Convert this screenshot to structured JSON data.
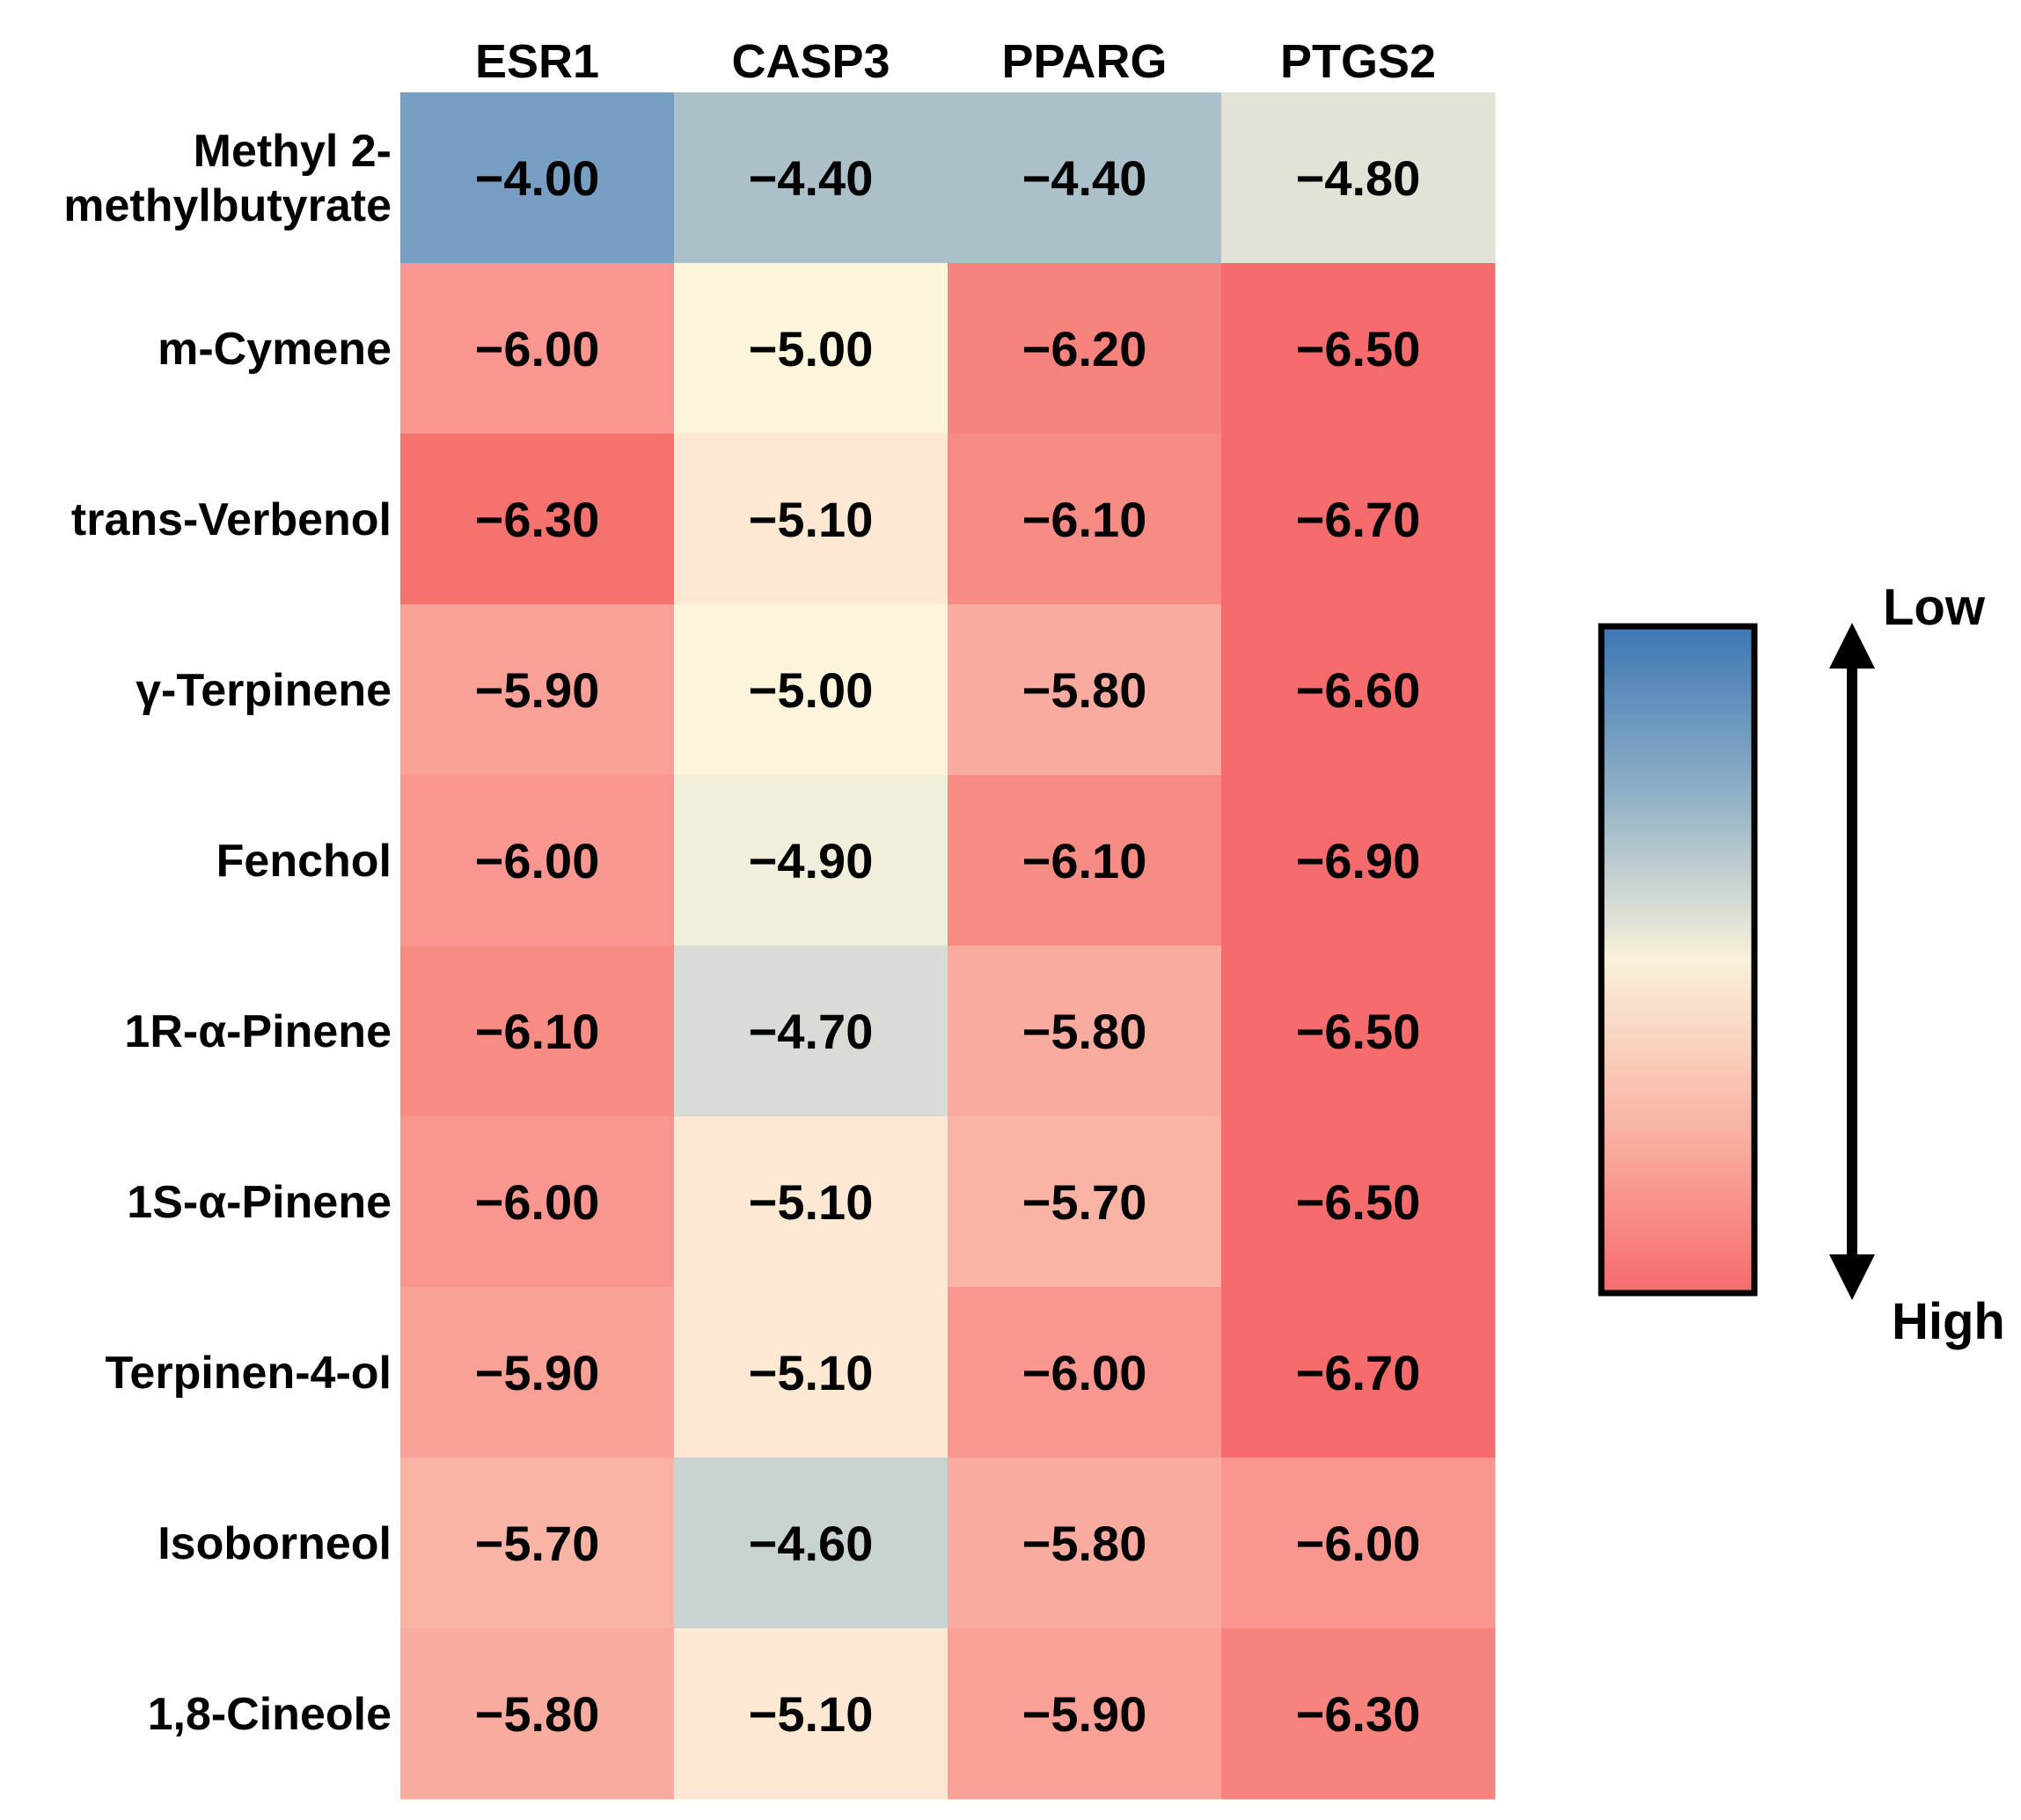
{
  "chart_data": {
    "type": "heatmap",
    "title": "",
    "xlabel": "",
    "ylabel": "",
    "columns": [
      "ESR1",
      "CASP3",
      "PPARG",
      "PTGS2"
    ],
    "rows": [
      [
        "Methyl 2-",
        "methylbutyrate"
      ],
      [
        "m-Cymene"
      ],
      [
        "trans-Verbenol"
      ],
      [
        "γ-Terpinene"
      ],
      [
        "Fenchol"
      ],
      [
        "1R-α-Pinene"
      ],
      [
        "1S-α-Pinene"
      ],
      [
        "Terpinen-4-ol"
      ],
      [
        "Isoborneol"
      ],
      [
        "1,8-Cineole"
      ]
    ],
    "values": [
      [
        -4.0,
        -4.4,
        -4.4,
        -4.8
      ],
      [
        -6.0,
        -5.0,
        -6.2,
        -6.5
      ],
      [
        -6.3,
        -5.1,
        -6.1,
        -6.7
      ],
      [
        -5.9,
        -5.0,
        -5.8,
        -6.6
      ],
      [
        -6.0,
        -4.9,
        -6.1,
        -6.9
      ],
      [
        -6.1,
        -4.7,
        -5.8,
        -6.5
      ],
      [
        -6.0,
        -5.1,
        -5.7,
        -6.5
      ],
      [
        -5.9,
        -5.1,
        -6.0,
        -6.7
      ],
      [
        -5.7,
        -4.6,
        -5.8,
        -6.0
      ],
      [
        -5.8,
        -5.1,
        -5.9,
        -6.3
      ]
    ],
    "cell_colors": [
      [
        "#769fc3",
        "#abc0c9",
        "#abc0c9",
        "#e3e2d6"
      ],
      [
        "#f9968f",
        "#fdf4dc",
        "#f7837f",
        "#f66b6b"
      ],
      [
        "#f6726e",
        "#fde8d4",
        "#f78c85",
        "#f66b6b"
      ],
      [
        "#f9a097",
        "#fdf4dc",
        "#f9ab9f",
        "#f66b6b"
      ],
      [
        "#f9968f",
        "#f2eedc",
        "#f78c85",
        "#f66b6b"
      ],
      [
        "#f78c85",
        "#d9dcd4",
        "#f9ab9f",
        "#f66b6b"
      ],
      [
        "#f9968f",
        "#fde8d4",
        "#f9b4a5",
        "#f66b6b"
      ],
      [
        "#f9a097",
        "#fde8d4",
        "#f9968f",
        "#f66b6b"
      ],
      [
        "#f9b4a5",
        "#c9d3d1",
        "#f9ab9f",
        "#f9968f"
      ],
      [
        "#f9ab9f",
        "#fde8d4",
        "#f9a097",
        "#f7837f"
      ]
    ],
    "legend": {
      "top_label": "Low",
      "bottom_label": "High",
      "gradient": [
        "#3d77b4",
        "#8fb0c6",
        "#f9f1da",
        "#f9b4a5",
        "#f66b6b"
      ]
    }
  }
}
